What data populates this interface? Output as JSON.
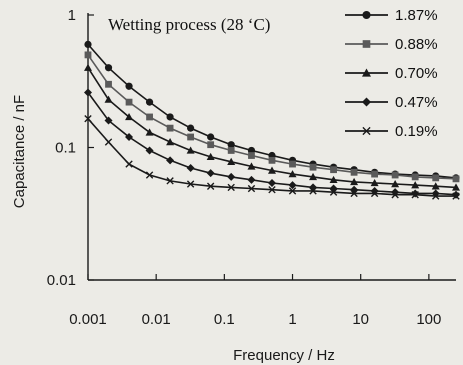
{
  "chart_data": {
    "type": "line",
    "title": "Wetting process (28 ‘C)",
    "xlabel": "Frequency / Hz",
    "ylabel": "Capacitance / nF",
    "xscale": "log",
    "yscale": "log",
    "xlim": [
      0.001,
      250
    ],
    "ylim": [
      0.01,
      1
    ],
    "xticks": [
      0.001,
      0.01,
      0.1,
      1,
      10,
      100
    ],
    "xtick_labels": [
      "0.001",
      "0.01",
      "0.1",
      "1",
      "10",
      "100"
    ],
    "yticks": [
      0.01,
      0.1,
      1
    ],
    "ytick_labels": [
      "0.01",
      "0.1",
      "1"
    ],
    "legend_position": "top-right",
    "grid": false,
    "x": [
      0.001,
      0.002,
      0.004,
      0.008,
      0.016,
      0.032,
      0.063,
      0.126,
      0.25,
      0.5,
      1,
      2,
      4,
      8,
      16,
      32,
      63,
      126,
      250
    ],
    "series": [
      {
        "name": "1.87%",
        "marker": "circle",
        "color": "#1a1a1a",
        "values": [
          0.6,
          0.4,
          0.29,
          0.22,
          0.17,
          0.14,
          0.12,
          0.105,
          0.095,
          0.087,
          0.08,
          0.075,
          0.071,
          0.068,
          0.065,
          0.063,
          0.062,
          0.061,
          0.059
        ]
      },
      {
        "name": "0.88%",
        "marker": "square",
        "color": "#5a5a5a",
        "values": [
          0.5,
          0.3,
          0.22,
          0.17,
          0.14,
          0.12,
          0.105,
          0.095,
          0.087,
          0.08,
          0.075,
          0.071,
          0.068,
          0.065,
          0.063,
          0.062,
          0.06,
          0.059,
          0.058
        ]
      },
      {
        "name": "0.70%",
        "marker": "triangle",
        "color": "#1a1a1a",
        "values": [
          0.4,
          0.23,
          0.17,
          0.13,
          0.11,
          0.095,
          0.085,
          0.078,
          0.072,
          0.067,
          0.063,
          0.06,
          0.057,
          0.055,
          0.054,
          0.053,
          0.052,
          0.051,
          0.05
        ]
      },
      {
        "name": "0.47%",
        "marker": "diamond",
        "color": "#1a1a1a",
        "values": [
          0.26,
          0.16,
          0.12,
          0.095,
          0.08,
          0.07,
          0.064,
          0.06,
          0.057,
          0.054,
          0.052,
          0.05,
          0.049,
          0.048,
          0.047,
          0.046,
          0.045,
          0.045,
          0.044
        ]
      },
      {
        "name": "0.19%",
        "marker": "cross",
        "color": "#1a1a1a",
        "values": [
          0.165,
          0.11,
          0.075,
          0.062,
          0.056,
          0.053,
          0.051,
          0.05,
          0.049,
          0.048,
          0.047,
          0.047,
          0.046,
          0.045,
          0.045,
          0.044,
          0.044,
          0.043,
          0.043
        ]
      }
    ]
  }
}
